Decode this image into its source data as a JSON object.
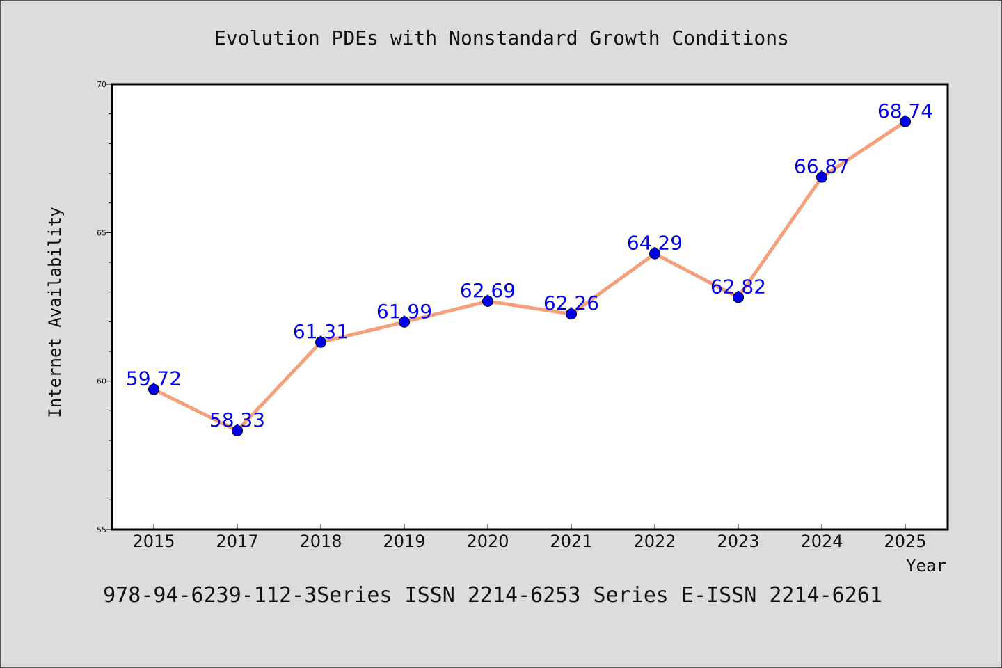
{
  "chart_data": {
    "type": "line",
    "title": "Evolution PDEs with Nonstandard Growth Conditions",
    "xlabel": "Year",
    "ylabel": "Internet Availability",
    "categories": [
      "2015",
      "2017",
      "2018",
      "2019",
      "2020",
      "2021",
      "2022",
      "2023",
      "2024",
      "2025"
    ],
    "values": [
      59.72,
      58.33,
      61.31,
      61.99,
      62.69,
      62.26,
      64.29,
      62.82,
      66.87,
      68.74
    ],
    "data_labels": [
      "59.72",
      "58.33",
      "61.31",
      "61.99",
      "62.69",
      "62.26",
      "64.29",
      "62.82",
      "66.87",
      "68.74"
    ],
    "ylim": [
      55,
      70
    ],
    "yticks": [
      55,
      60,
      65,
      70
    ],
    "ytick_labels": [
      "55",
      "60",
      "65",
      "70"
    ],
    "grid": false,
    "legend": "none",
    "colors": {
      "line": "#f4a07a",
      "marker": "#0000ee",
      "label": "#0000ee",
      "background": "#dcdcdc",
      "plot_background": "#ffffff"
    }
  },
  "footer": {
    "text": "978-94-6239-112-3Series ISSN 2214-6253 Series E-ISSN 2214-6261"
  }
}
